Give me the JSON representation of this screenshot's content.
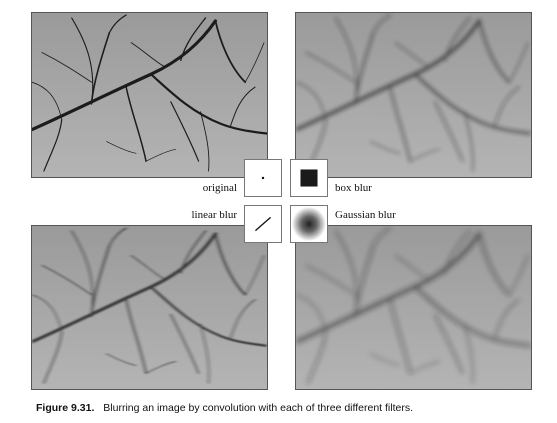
{
  "figure": {
    "panels": [
      {
        "id": "original",
        "label": "original"
      },
      {
        "id": "box",
        "label": "box blur"
      },
      {
        "id": "linear",
        "label": "linear blur"
      },
      {
        "id": "gaussian",
        "label": "Gaussian blur"
      }
    ],
    "caption": {
      "number": "Figure 9.31.",
      "text": "Blurring an image by convolution with each of three different filters."
    }
  }
}
